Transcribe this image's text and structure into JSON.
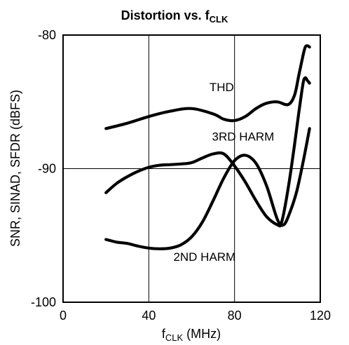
{
  "chart_data": {
    "type": "line",
    "title": {
      "main": "Distortion vs. f",
      "sub": "CLK"
    },
    "xlabel": {
      "main": "f",
      "sub": "CLK",
      "rest": " (MHz)"
    },
    "ylabel": "SNR, SINAD, SFDR (dBFS)",
    "xlim": [
      0,
      120
    ],
    "ylim": [
      -100,
      -80
    ],
    "xticks": [
      0,
      40,
      80,
      120
    ],
    "xtick_labels": [
      "0",
      "40",
      "80",
      "120"
    ],
    "yticks": [
      -100,
      -90,
      -80
    ],
    "ytick_labels": [
      "-100",
      "-90",
      "-80"
    ],
    "grid": true,
    "series": [
      {
        "name": "THD",
        "x": [
          20,
          30,
          40,
          50,
          60,
          70,
          75,
          80,
          85,
          90,
          95,
          100,
          105,
          108,
          110,
          112,
          113,
          114,
          115
        ],
        "y": [
          -87.0,
          -86.6,
          -86.1,
          -85.7,
          -85.5,
          -85.9,
          -86.3,
          -86.4,
          -86.1,
          -85.5,
          -85.1,
          -85.0,
          -85.2,
          -84.5,
          -83.0,
          -81.5,
          -80.9,
          -80.8,
          -80.9
        ]
      },
      {
        "name": "3RD HARM",
        "x": [
          20,
          25,
          30,
          35,
          40,
          45,
          50,
          55,
          60,
          65,
          70,
          75,
          80,
          85,
          90,
          95,
          100,
          102,
          105,
          108,
          110,
          112,
          113,
          114,
          115
        ],
        "y": [
          -91.8,
          -91.1,
          -90.6,
          -90.2,
          -89.9,
          -89.75,
          -89.7,
          -89.65,
          -89.55,
          -89.2,
          -88.9,
          -88.9,
          -89.8,
          -91.0,
          -92.4,
          -93.6,
          -94.2,
          -94.0,
          -91.5,
          -88.2,
          -85.8,
          -83.6,
          -83.2,
          -83.4,
          -83.6
        ]
      },
      {
        "name": "2ND HARM",
        "x": [
          20,
          25,
          30,
          35,
          40,
          45,
          50,
          55,
          60,
          65,
          70,
          75,
          80,
          85,
          90,
          95,
          100,
          103,
          106,
          109,
          112,
          115
        ],
        "y": [
          -95.3,
          -95.5,
          -95.6,
          -95.8,
          -95.95,
          -96.0,
          -95.95,
          -95.7,
          -95.1,
          -94.0,
          -92.4,
          -90.7,
          -89.4,
          -89.0,
          -89.6,
          -91.3,
          -93.8,
          -94.2,
          -93.2,
          -91.7,
          -89.5,
          -87.0
        ]
      }
    ],
    "curve_labels": [
      {
        "text": "THD",
        "x": 74,
        "y": -84.2
      },
      {
        "text": "3RD HARM",
        "x": 84,
        "y": -87.9
      },
      {
        "text": "2ND HARM",
        "x": 66,
        "y": -96.9
      }
    ]
  }
}
